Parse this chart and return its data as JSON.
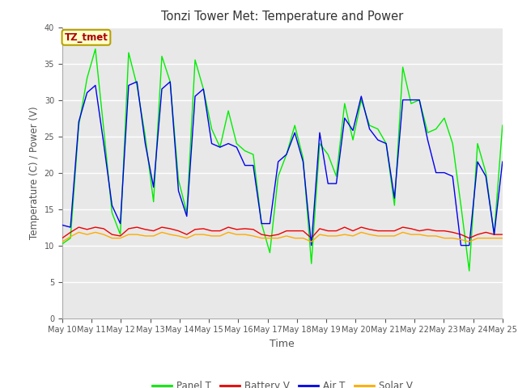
{
  "title": "Tonzi Tower Met: Temperature and Power",
  "xlabel": "Time",
  "ylabel": "Temperature (C) / Power (V)",
  "ylim": [
    0,
    40
  ],
  "yticks": [
    0,
    5,
    10,
    15,
    20,
    25,
    30,
    35,
    40
  ],
  "x_labels": [
    "May 10",
    "May 11",
    "May 12",
    "May 13",
    "May 14",
    "May 15",
    "May 16",
    "May 17",
    "May 18",
    "May 19",
    "May 20",
    "May 21",
    "May 22",
    "May 23",
    "May 24",
    "May 25"
  ],
  "annotation_text": "TZ_tmet",
  "annotation_bg": "#ffffcc",
  "annotation_border": "#b8a000",
  "annotation_text_color": "#aa0000",
  "colors": {
    "panel_t": "#00ee00",
    "battery_v": "#ee0000",
    "air_t": "#0000ee",
    "solar_v": "#ffaa00"
  },
  "legend_labels": [
    "Panel T",
    "Battery V",
    "Air T",
    "Solar V"
  ],
  "bg_color": "#e8e8e8",
  "fig_bg": "#ffffff",
  "panel_t": [
    10.2,
    11.0,
    26.5,
    33.0,
    37.0,
    26.0,
    14.5,
    11.5,
    36.5,
    32.0,
    25.0,
    16.0,
    36.0,
    32.5,
    19.0,
    14.5,
    35.5,
    31.5,
    26.0,
    23.5,
    28.5,
    24.0,
    23.0,
    22.5,
    13.0,
    9.0,
    19.5,
    22.5,
    26.5,
    22.0,
    7.5,
    24.0,
    22.5,
    19.5,
    29.5,
    24.5,
    30.0,
    26.5,
    26.0,
    24.0,
    15.5,
    34.5,
    29.5,
    30.0,
    25.5,
    26.0,
    27.5,
    24.0,
    15.5,
    6.5,
    24.0,
    20.0,
    11.5,
    26.5
  ],
  "air_t": [
    12.8,
    12.5,
    27.0,
    31.0,
    32.0,
    24.0,
    15.5,
    13.0,
    32.0,
    32.5,
    24.0,
    18.0,
    31.5,
    32.5,
    17.5,
    14.0,
    30.5,
    31.5,
    24.0,
    23.5,
    24.0,
    23.5,
    21.0,
    21.0,
    13.0,
    13.0,
    21.5,
    22.5,
    25.5,
    21.5,
    10.0,
    25.5,
    18.5,
    18.5,
    27.5,
    25.8,
    30.5,
    26.0,
    24.5,
    24.0,
    16.5,
    30.0,
    30.0,
    30.0,
    24.5,
    20.0,
    20.0,
    19.5,
    10.0,
    10.0,
    21.5,
    19.5,
    11.5,
    21.5
  ],
  "battery_v": [
    11.0,
    11.8,
    12.5,
    12.2,
    12.5,
    12.3,
    11.5,
    11.3,
    12.3,
    12.5,
    12.2,
    12.0,
    12.5,
    12.3,
    12.0,
    11.5,
    12.2,
    12.3,
    12.0,
    12.0,
    12.5,
    12.2,
    12.3,
    12.2,
    11.5,
    11.3,
    11.5,
    12.0,
    12.0,
    12.0,
    11.0,
    12.3,
    12.0,
    12.0,
    12.5,
    12.0,
    12.5,
    12.2,
    12.0,
    12.0,
    12.0,
    12.5,
    12.3,
    12.0,
    12.2,
    12.0,
    12.0,
    11.8,
    11.5,
    11.0,
    11.5,
    11.8,
    11.5,
    11.5
  ],
  "solar_v": [
    10.5,
    11.2,
    11.8,
    11.5,
    11.8,
    11.5,
    11.0,
    11.0,
    11.5,
    11.5,
    11.3,
    11.3,
    11.8,
    11.5,
    11.3,
    11.0,
    11.5,
    11.5,
    11.3,
    11.3,
    11.8,
    11.5,
    11.5,
    11.3,
    11.0,
    11.0,
    11.0,
    11.3,
    11.0,
    11.0,
    10.5,
    11.5,
    11.3,
    11.3,
    11.5,
    11.3,
    11.8,
    11.5,
    11.3,
    11.3,
    11.3,
    11.8,
    11.5,
    11.5,
    11.3,
    11.3,
    11.0,
    11.0,
    10.8,
    10.5,
    11.0,
    11.0,
    11.0,
    11.0
  ]
}
